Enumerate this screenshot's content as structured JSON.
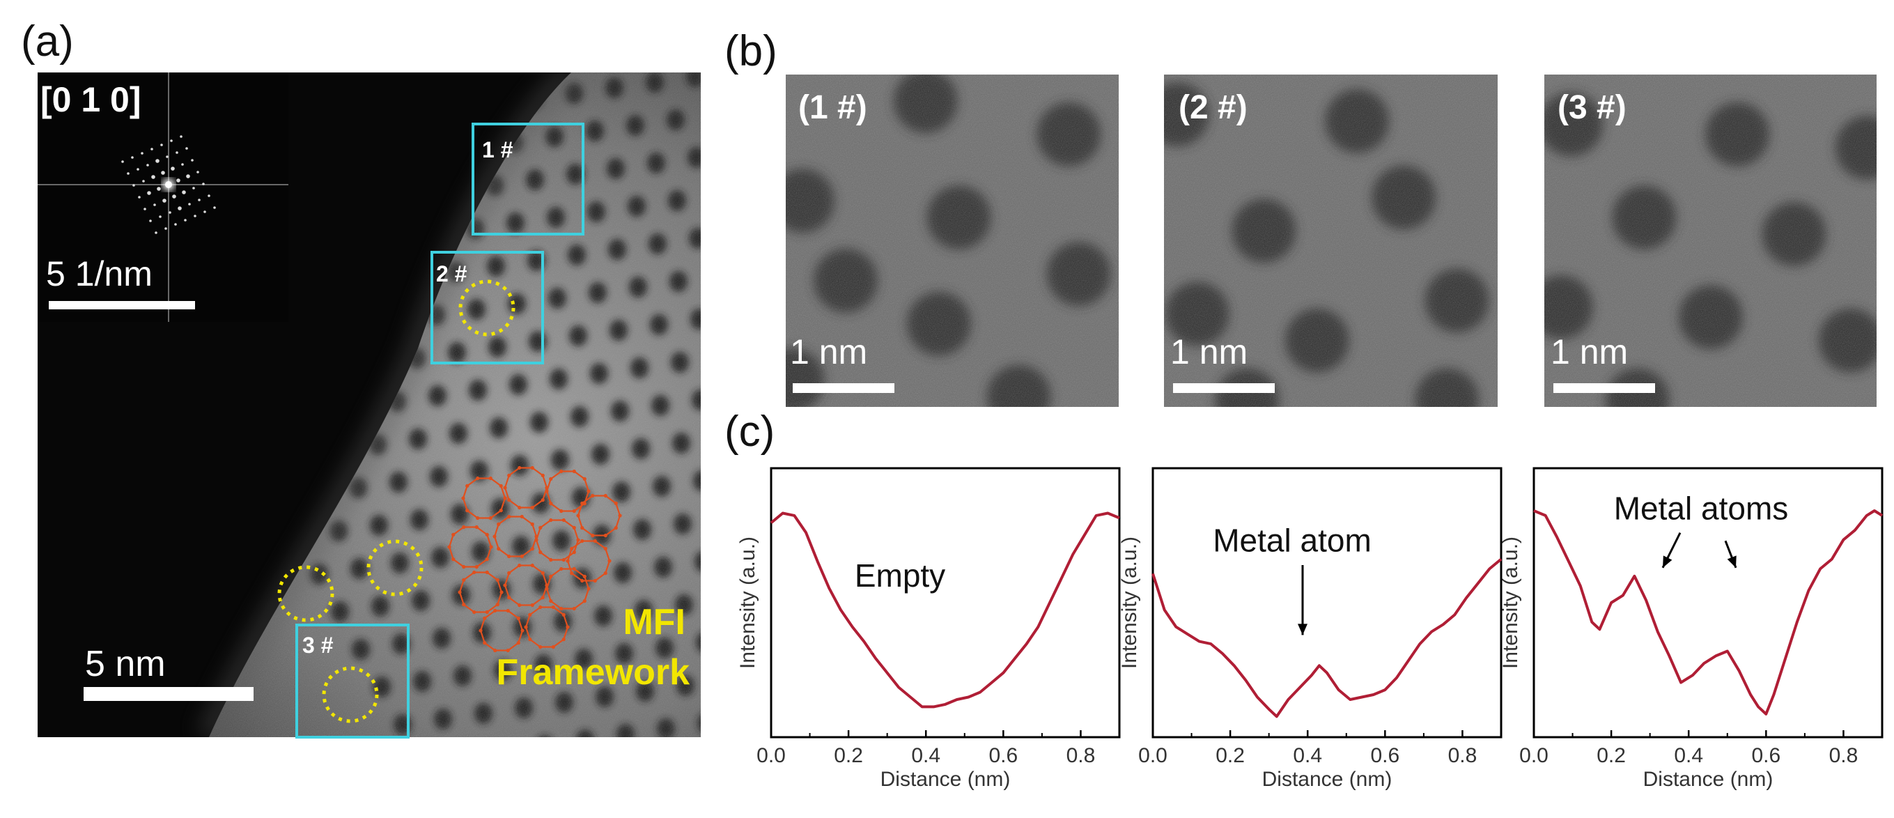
{
  "panels": {
    "a": "(a)",
    "b": "(b)",
    "c": "(c)"
  },
  "panel_a": {
    "zone_axis": "[0 1 0]",
    "fft_scale": "5 1/nm",
    "scale": "5 nm",
    "box_labels": [
      "1 #",
      "2 #",
      "3 #"
    ],
    "framework_line1": "MFI",
    "framework_line2": "Framework"
  },
  "panel_b": {
    "tiles": [
      {
        "label": "(1 #)",
        "scale": "1 nm"
      },
      {
        "label": "(2 #)",
        "scale": "1 nm"
      },
      {
        "label": "(3 #)",
        "scale": "1 nm"
      }
    ]
  },
  "colors": {
    "box": "#3fd0df",
    "circle": "#f2e600",
    "framework_text": "#f2e600",
    "framework_net": "#e0501e",
    "curve": "#b01e35"
  },
  "chart_data": [
    {
      "type": "line",
      "xlabel": "Distance (nm)",
      "ylabel": "Intensity (a.u.)",
      "xlim": [
        0,
        0.9
      ],
      "ylim": [
        0,
        1
      ],
      "xticks": [
        "0.0",
        "0.2",
        "0.4",
        "0.6",
        "0.8"
      ],
      "annotations": [
        "Empty"
      ],
      "x": [
        0.0,
        0.03,
        0.06,
        0.09,
        0.12,
        0.15,
        0.18,
        0.21,
        0.24,
        0.27,
        0.3,
        0.33,
        0.36,
        0.39,
        0.42,
        0.45,
        0.48,
        0.51,
        0.54,
        0.57,
        0.6,
        0.63,
        0.66,
        0.69,
        0.72,
        0.75,
        0.78,
        0.81,
        0.84,
        0.87,
        0.9
      ],
      "values": [
        0.83,
        0.87,
        0.86,
        0.79,
        0.67,
        0.56,
        0.47,
        0.4,
        0.34,
        0.27,
        0.21,
        0.15,
        0.11,
        0.07,
        0.07,
        0.08,
        0.1,
        0.11,
        0.13,
        0.17,
        0.21,
        0.27,
        0.33,
        0.4,
        0.5,
        0.6,
        0.7,
        0.78,
        0.86,
        0.87,
        0.85
      ]
    },
    {
      "type": "line",
      "xlabel": "Distance (nm)",
      "ylabel": "Intensity (a.u.)",
      "xlim": [
        0,
        0.9
      ],
      "ylim": [
        0,
        1
      ],
      "xticks": [
        "0.0",
        "0.2",
        "0.4",
        "0.6",
        "0.8"
      ],
      "annotations": [
        "Metal  atom"
      ],
      "x": [
        0.0,
        0.03,
        0.06,
        0.09,
        0.12,
        0.15,
        0.18,
        0.21,
        0.24,
        0.27,
        0.3,
        0.32,
        0.35,
        0.38,
        0.41,
        0.43,
        0.45,
        0.48,
        0.51,
        0.54,
        0.57,
        0.6,
        0.63,
        0.66,
        0.69,
        0.72,
        0.75,
        0.78,
        0.81,
        0.84,
        0.87,
        0.9
      ],
      "values": [
        0.62,
        0.47,
        0.4,
        0.37,
        0.34,
        0.33,
        0.29,
        0.24,
        0.18,
        0.11,
        0.06,
        0.03,
        0.1,
        0.15,
        0.2,
        0.24,
        0.21,
        0.14,
        0.1,
        0.11,
        0.12,
        0.14,
        0.19,
        0.26,
        0.33,
        0.38,
        0.41,
        0.45,
        0.52,
        0.58,
        0.64,
        0.68
      ]
    },
    {
      "type": "line",
      "xlabel": "Distance (nm)",
      "ylabel": "Intensity (a.u.)",
      "xlim": [
        0,
        0.9
      ],
      "ylim": [
        0,
        1
      ],
      "xticks": [
        "0.0",
        "0.2",
        "0.4",
        "0.6",
        "0.8"
      ],
      "annotations": [
        "Metal atoms"
      ],
      "x": [
        0.0,
        0.03,
        0.06,
        0.09,
        0.12,
        0.15,
        0.17,
        0.2,
        0.23,
        0.26,
        0.29,
        0.32,
        0.35,
        0.38,
        0.41,
        0.44,
        0.47,
        0.5,
        0.53,
        0.56,
        0.58,
        0.6,
        0.62,
        0.65,
        0.68,
        0.71,
        0.74,
        0.77,
        0.8,
        0.83,
        0.86,
        0.88,
        0.9
      ],
      "values": [
        0.88,
        0.86,
        0.77,
        0.67,
        0.57,
        0.42,
        0.39,
        0.5,
        0.53,
        0.61,
        0.51,
        0.38,
        0.28,
        0.17,
        0.2,
        0.25,
        0.28,
        0.3,
        0.22,
        0.12,
        0.07,
        0.04,
        0.12,
        0.27,
        0.42,
        0.55,
        0.64,
        0.68,
        0.76,
        0.8,
        0.86,
        0.88,
        0.86
      ]
    }
  ]
}
